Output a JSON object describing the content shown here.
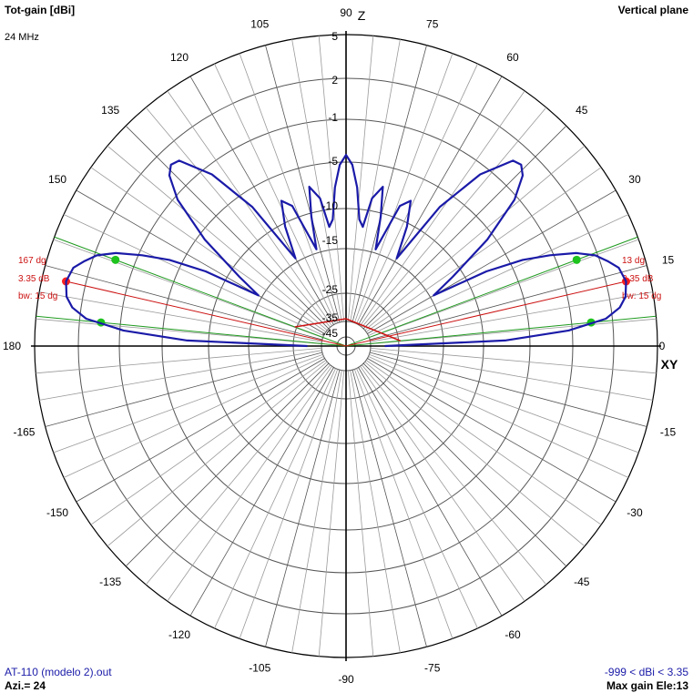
{
  "header": {
    "title": "Tot-gain [dBi]",
    "frequency": "24 MHz",
    "plane": "Vertical plane"
  },
  "footer": {
    "file": "AT-110 (modelo 2).out",
    "azimuth": "Azi.= 24",
    "range": "-999 < dBi < 3.35",
    "max_gain": "Max gain Ele:13"
  },
  "chart_data": {
    "type": "polar",
    "axis_labels": {
      "top": "Z",
      "right": "XY"
    },
    "angle_ticks": [
      0,
      15,
      30,
      45,
      60,
      75,
      90,
      105,
      120,
      135,
      150,
      180,
      -165,
      -150,
      -135,
      -120,
      -105,
      -90,
      -75,
      -60,
      -45,
      -30,
      -15
    ],
    "angle_tick_labels": [
      "0",
      "15",
      "30",
      "45",
      "60",
      "75",
      "90",
      "105",
      "120",
      "135",
      "150",
      "180",
      "-165",
      "-150",
      "-135",
      "-120",
      "-105",
      "-90",
      "-75",
      "-60",
      "-45",
      "-30",
      "-15"
    ],
    "radial_ticks": [
      5,
      2,
      -1,
      -5,
      -10,
      -15,
      -25,
      -35,
      -45
    ],
    "radial_tick_labels": [
      "5",
      "2",
      "-1",
      "-5",
      "-10",
      "-15",
      "-25",
      "-35",
      "-45"
    ],
    "series": [
      {
        "color": "#1a1aa8",
        "points": [
          [
            0,
            -30
          ],
          [
            2,
            -8
          ],
          [
            4,
            -1.5
          ],
          [
            6,
            1.5
          ],
          [
            8,
            2.6
          ],
          [
            10,
            3.1
          ],
          [
            13,
            3.35
          ],
          [
            16,
            3.1
          ],
          [
            18,
            2.5
          ],
          [
            20,
            1.8
          ],
          [
            22,
            0.5
          ],
          [
            24,
            -1.5
          ],
          [
            26,
            -4
          ],
          [
            28,
            -8
          ],
          [
            30,
            -16
          ],
          [
            33,
            -12
          ],
          [
            37,
            -6
          ],
          [
            41,
            -1.5
          ],
          [
            44,
            0.3
          ],
          [
            46,
            0.8
          ],
          [
            48,
            0.6
          ],
          [
            52,
            -2
          ],
          [
            56,
            -7
          ],
          [
            60,
            -16
          ],
          [
            63,
            -11
          ],
          [
            66,
            -8
          ],
          [
            69,
            -9
          ],
          [
            71,
            -13
          ],
          [
            73,
            -16
          ],
          [
            75,
            -11
          ],
          [
            77,
            -7.5
          ],
          [
            80,
            -9
          ],
          [
            82,
            -13
          ],
          [
            84,
            -12
          ],
          [
            86,
            -8
          ],
          [
            88,
            -5.5
          ],
          [
            90,
            -4.5
          ],
          [
            92,
            -5.5
          ],
          [
            94,
            -8
          ],
          [
            96,
            -12
          ],
          [
            98,
            -13
          ],
          [
            100,
            -9
          ],
          [
            103,
            -7.5
          ],
          [
            105,
            -11
          ],
          [
            107,
            -16
          ],
          [
            109,
            -13
          ],
          [
            111,
            -9
          ],
          [
            114,
            -8
          ],
          [
            117,
            -11
          ],
          [
            120,
            -16
          ],
          [
            124,
            -7
          ],
          [
            128,
            -2
          ],
          [
            132,
            0.6
          ],
          [
            134,
            0.8
          ],
          [
            136,
            0.3
          ],
          [
            139,
            -1.5
          ],
          [
            143,
            -6
          ],
          [
            147,
            -12
          ],
          [
            150,
            -16
          ],
          [
            152,
            -8
          ],
          [
            154,
            -4
          ],
          [
            156,
            -1.5
          ],
          [
            158,
            0.5
          ],
          [
            160,
            1.8
          ],
          [
            162,
            2.5
          ],
          [
            164,
            3.1
          ],
          [
            167,
            3.35
          ],
          [
            170,
            3.1
          ],
          [
            172,
            2.6
          ],
          [
            174,
            1.5
          ],
          [
            176,
            -1.5
          ],
          [
            178,
            -8
          ],
          [
            180,
            -30
          ]
        ]
      }
    ],
    "beams": [
      {
        "side": "right",
        "max_angle": 13,
        "max_gain": 3.35,
        "half_power": [
          {
            "angle": 5.5,
            "gain": 0.35
          },
          {
            "angle": 20.5,
            "gain": 0.35
          }
        ],
        "labels": {
          "angle": "13 dg",
          "gain": "3.35 dB",
          "bw": "bw: 15 dg"
        }
      },
      {
        "side": "left",
        "max_angle": 167,
        "max_gain": 3.35,
        "half_power": [
          {
            "angle": 159.5,
            "gain": 0.35
          },
          {
            "angle": 174.5,
            "gain": 0.35
          }
        ],
        "labels": {
          "angle": "167 dg",
          "gain": "3.35 dB",
          "bw": "bw: 15 dg"
        }
      }
    ],
    "grid": true
  }
}
